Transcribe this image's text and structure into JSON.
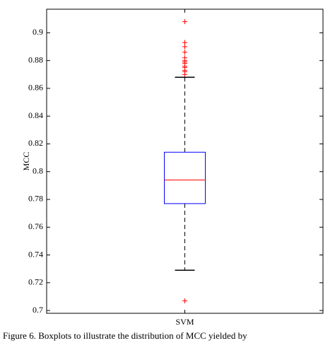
{
  "chart_data": {
    "type": "box",
    "y_label": "MCC",
    "categories": [
      "SVM"
    ],
    "boxes": [
      {
        "q1": 0.777,
        "median": 0.794,
        "q3": 0.814,
        "whisker_low": 0.729,
        "whisker_high": 0.868,
        "outliers": [
          0.707,
          0.908,
          0.893,
          0.89,
          0.886,
          0.882,
          0.88,
          0.879,
          0.878,
          0.876,
          0.875,
          0.873,
          0.872,
          0.87
        ]
      }
    ],
    "box_color": "#0000ff",
    "median_color": "#ff0000",
    "whisker_color": "#000000",
    "outlier_color": "#ff0000",
    "ylim": [
      0.698,
      0.917
    ],
    "yticks": [
      0.7,
      0.72,
      0.74,
      0.76,
      0.78,
      0.8,
      0.82,
      0.84,
      0.86,
      0.88,
      0.9
    ],
    "caption": "Figure 6. Boxplots to illustrate the distribution of MCC yielded by"
  }
}
